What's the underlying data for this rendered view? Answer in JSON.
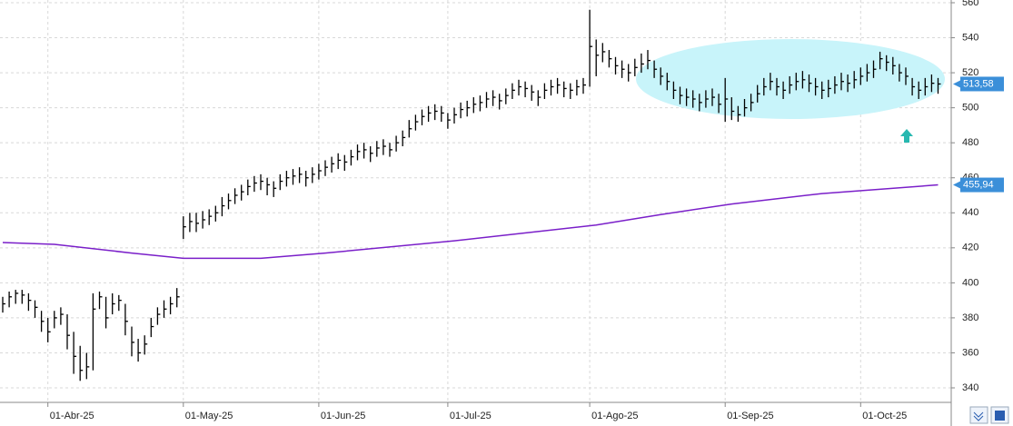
{
  "chart_data": {
    "type": "ohlc",
    "color": "#000000",
    "ylim": [
      340,
      560
    ],
    "yticks": [
      340,
      360,
      380,
      400,
      420,
      440,
      460,
      480,
      500,
      520,
      540,
      560
    ],
    "grid": true,
    "xticks": [
      {
        "value": 7,
        "label": "01-Abr-25"
      },
      {
        "value": 28,
        "label": "01-May-25"
      },
      {
        "value": 49,
        "label": "01-Jun-25"
      },
      {
        "value": 69,
        "label": "01-Jul-25"
      },
      {
        "value": 91,
        "label": "01-Ago-25"
      },
      {
        "value": 112,
        "label": "01-Sep-25"
      },
      {
        "value": 133,
        "label": "01-Oct-25"
      }
    ],
    "high": [
      392,
      395,
      396,
      396,
      394,
      390,
      384,
      380,
      384,
      386,
      382,
      372,
      364,
      360,
      394,
      395,
      392,
      394,
      393,
      388,
      375,
      368,
      370,
      380,
      386,
      390,
      392,
      397,
      438,
      440,
      440,
      441,
      442,
      444,
      449,
      451,
      454,
      456,
      459,
      461,
      462,
      460,
      458,
      462,
      464,
      465,
      466,
      464,
      466,
      468,
      470,
      472,
      474,
      473,
      476,
      479,
      480,
      478,
      481,
      482,
      480,
      484,
      487,
      493,
      496,
      499,
      501,
      502,
      501,
      497,
      500,
      503,
      504,
      506,
      507,
      509,
      510,
      508,
      511,
      514,
      516,
      515,
      513,
      510,
      514,
      516,
      517,
      515,
      514,
      516,
      517,
      556,
      539,
      537,
      533,
      529,
      527,
      525,
      528,
      531,
      533,
      527,
      523,
      520,
      515,
      512,
      511,
      510,
      508,
      510,
      511,
      508,
      517,
      506,
      501,
      505,
      508,
      513,
      517,
      520,
      517,
      515,
      518,
      520,
      521,
      519,
      517,
      515,
      516,
      518,
      520,
      519,
      521,
      523,
      525,
      527,
      532,
      530,
      529,
      525,
      523,
      517,
      515,
      517,
      519,
      517
    ],
    "low": [
      383,
      386,
      388,
      388,
      384,
      380,
      372,
      366,
      374,
      376,
      362,
      348,
      344,
      345,
      350,
      385,
      374,
      382,
      384,
      370,
      358,
      355,
      359,
      369,
      376,
      380,
      382,
      386,
      425,
      429,
      429,
      431,
      433,
      435,
      438,
      442,
      445,
      447,
      450,
      452,
      453,
      450,
      449,
      453,
      455,
      456,
      457,
      455,
      457,
      459,
      461,
      463,
      465,
      464,
      467,
      470,
      471,
      469,
      472,
      473,
      472,
      475,
      478,
      483,
      487,
      490,
      492,
      493,
      492,
      488,
      491,
      494,
      495,
      497,
      498,
      500,
      501,
      499,
      502,
      505,
      507,
      506,
      504,
      501,
      505,
      507,
      508,
      506,
      505,
      507,
      508,
      512,
      518,
      526,
      523,
      519,
      517,
      515,
      518,
      520,
      522,
      517,
      513,
      510,
      505,
      502,
      501,
      500,
      498,
      500,
      501,
      497,
      492,
      493,
      492,
      495,
      498,
      503,
      507,
      510,
      507,
      505,
      508,
      510,
      511,
      509,
      507,
      505,
      506,
      508,
      510,
      509,
      511,
      513,
      515,
      517,
      522,
      521,
      519,
      515,
      513,
      507,
      505,
      507,
      509,
      508
    ],
    "close": [
      388,
      392,
      394,
      393,
      390,
      386,
      378,
      372,
      380,
      382,
      370,
      358,
      350,
      352,
      385,
      392,
      380,
      388,
      390,
      378,
      366,
      360,
      365,
      375,
      382,
      385,
      388,
      392,
      432,
      435,
      434,
      436,
      438,
      440,
      444,
      447,
      450,
      452,
      455,
      457,
      458,
      456,
      454,
      458,
      460,
      461,
      462,
      460,
      462,
      464,
      466,
      468,
      470,
      469,
      472,
      475,
      476,
      474,
      477,
      478,
      476,
      480,
      483,
      488,
      492,
      495,
      497,
      498,
      497,
      493,
      496,
      499,
      500,
      502,
      503,
      505,
      506,
      504,
      507,
      510,
      512,
      511,
      509,
      506,
      510,
      512,
      513,
      511,
      510,
      512,
      513,
      535,
      530,
      532,
      528,
      524,
      522,
      520,
      523,
      525,
      527,
      522,
      518,
      515,
      510,
      507,
      506,
      505,
      503,
      505,
      506,
      502,
      505,
      498,
      496,
      500,
      503,
      508,
      512,
      515,
      512,
      510,
      513,
      515,
      516,
      514,
      512,
      510,
      511,
      513,
      515,
      514,
      516,
      518,
      520,
      522,
      528,
      526,
      524,
      520,
      518,
      512,
      510,
      512,
      514,
      513.58
    ],
    "last_label": "513,58",
    "moving_average": {
      "color": "#7a1fc9",
      "x": [
        0,
        8,
        20,
        28,
        40,
        50,
        70,
        92,
        102,
        113,
        127,
        145
      ],
      "values": [
        423,
        422,
        417,
        414,
        414,
        417,
        424,
        433,
        439,
        445,
        451,
        455.94
      ],
      "last_label": "455,94"
    }
  }
}
